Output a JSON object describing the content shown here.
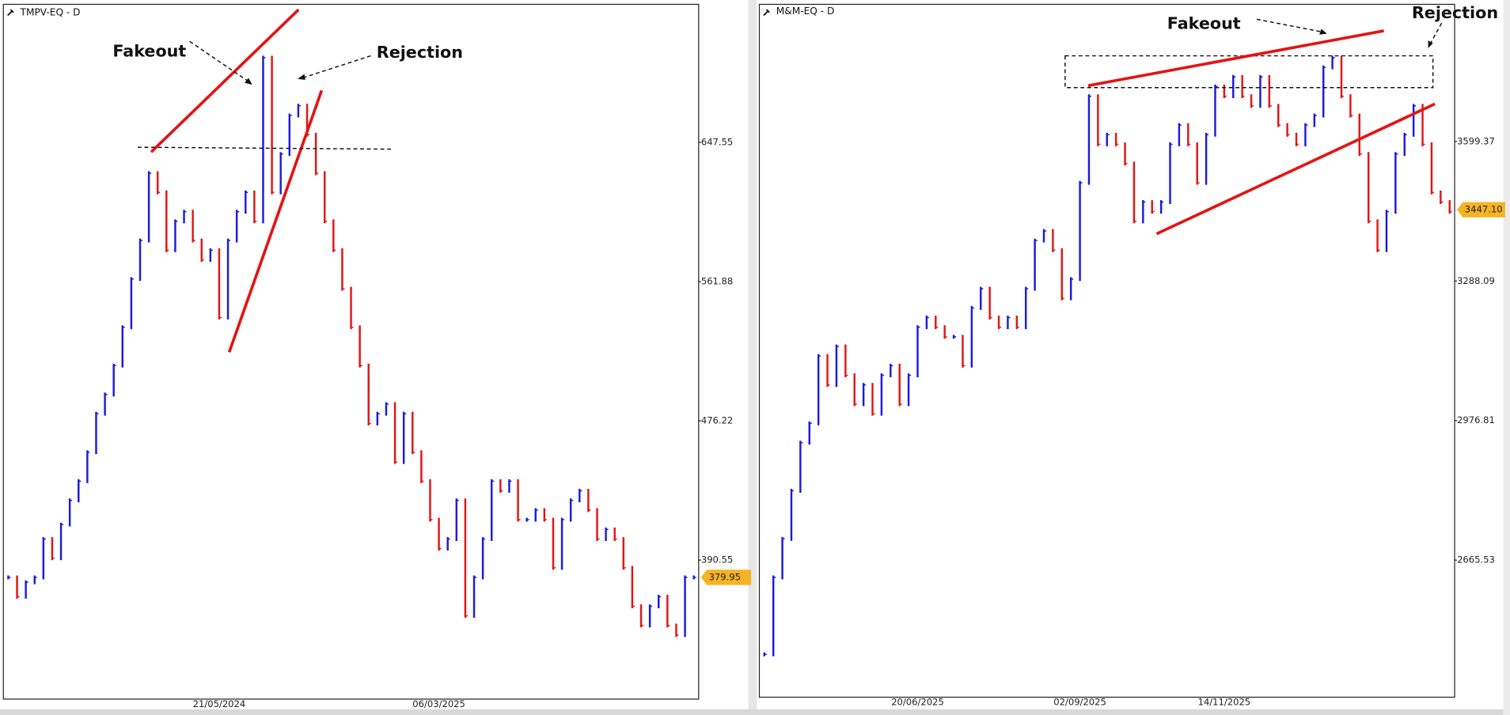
{
  "chart_data": [
    {
      "type": "ohlc",
      "title": "TMPV-EQ - D",
      "up_color": "#1a1ae0",
      "down_color": "#e31414",
      "annotations": [
        "Fakeout",
        "Rejection"
      ],
      "categories": [
        null,
        null,
        null,
        null,
        null,
        null,
        null,
        null,
        null,
        null,
        null,
        null,
        null,
        null,
        null,
        null,
        null,
        null,
        null,
        null,
        null,
        null,
        null,
        null,
        "21/05/2024",
        null,
        null,
        null,
        null,
        null,
        null,
        null,
        null,
        null,
        null,
        null,
        null,
        null,
        null,
        null,
        null,
        null,
        null,
        null,
        null,
        null,
        null,
        null,
        null,
        "06/03/2025",
        null,
        null,
        null,
        null,
        null,
        null,
        null,
        null,
        null,
        null,
        null,
        null,
        null,
        null,
        null,
        null,
        null,
        null,
        null,
        null,
        null,
        null,
        null,
        null,
        null,
        null,
        null,
        null,
        null
      ],
      "values": [
        379.9,
        368.0,
        376.9,
        379.9,
        403.5,
        391.7,
        412.4,
        427.3,
        439.1,
        456.9,
        480.6,
        492.4,
        510.2,
        533.8,
        563.5,
        587.2,
        628.6,
        616.8,
        581.2,
        599.0,
        604.9,
        587.2,
        575.3,
        581.2,
        539.8,
        587.2,
        604.9,
        616.8,
        599.0,
        699.7,
        616.8,
        640.4,
        664.1,
        670.1,
        652.3,
        628.6,
        599.0,
        581.2,
        557.5,
        533.8,
        510.2,
        474.6,
        480.6,
        486.5,
        450.9,
        480.6,
        456.9,
        439.1,
        415.4,
        397.6,
        403.5,
        427.3,
        356.2,
        379.9,
        403.5,
        439.1,
        433.2,
        439.1,
        415.4,
        415.4,
        421.3,
        415.4,
        385.8,
        415.4,
        427.3,
        433.2,
        421.3,
        403.5,
        409.4,
        403.5,
        385.8,
        362.1,
        350.3,
        362.1,
        368.0,
        350.3,
        344.4,
        379.9,
        379.9
      ],
      "ylim": [
        305.3,
        732.8
      ],
      "yticks": [
        390.55,
        476.22,
        561.88,
        647.55
      ],
      "last_price": 379.95
    },
    {
      "type": "ohlc",
      "title": "M&M-EQ - D",
      "up_color": "#1a1ae0",
      "down_color": "#e31414",
      "annotations": [
        "Fakeout",
        "Rejection"
      ],
      "categories": [
        null,
        null,
        null,
        null,
        null,
        null,
        null,
        null,
        null,
        null,
        null,
        null,
        null,
        null,
        null,
        null,
        null,
        "20/06/2025",
        null,
        null,
        null,
        null,
        null,
        null,
        null,
        null,
        null,
        null,
        null,
        null,
        null,
        null,
        null,
        null,
        null,
        "02/09/2025",
        null,
        null,
        null,
        null,
        null,
        null,
        null,
        null,
        null,
        null,
        null,
        null,
        null,
        null,
        null,
        "14/11/2025",
        null,
        null,
        null,
        null,
        null,
        null,
        null,
        null,
        null,
        null,
        null,
        null,
        null,
        null,
        null,
        null,
        null,
        null,
        null,
        null,
        null,
        null,
        null,
        null,
        null
      ],
      "values": [
        2455.2,
        2626.9,
        2712.8,
        2820.1,
        2927.4,
        2970.4,
        3120.7,
        3056.3,
        3142.1,
        3077.7,
        3013.3,
        3056.3,
        2991.9,
        3077.7,
        3099.2,
        3013.3,
        3077.7,
        3185.1,
        3206.5,
        3185.1,
        3163.6,
        3163.6,
        3099.2,
        3228.0,
        3270.9,
        3206.5,
        3185.1,
        3206.5,
        3185.1,
        3270.9,
        3378.3,
        3399.7,
        3356.8,
        3249.5,
        3292.4,
        3507.1,
        3700.3,
        3593.0,
        3614.4,
        3593.0,
        3550.0,
        3421.2,
        3464.2,
        3442.7,
        3464.2,
        3593.0,
        3635.9,
        3593.0,
        3507.1,
        3614.4,
        3721.8,
        3700.3,
        3743.2,
        3700.3,
        3678.8,
        3743.2,
        3678.8,
        3635.9,
        3614.4,
        3593.0,
        3635.9,
        3657.3,
        3764.7,
        3786.2,
        3700.3,
        3657.3,
        3571.5,
        3421.2,
        3356.8,
        3442.7,
        3571.5,
        3614.4,
        3678.8,
        3593.0,
        3485.6,
        3464.2,
        3442.7
      ],
      "ylim": [
        2360.7,
        3906.4
      ],
      "yticks": [
        2665.53,
        2976.81,
        3288.09,
        3599.37
      ],
      "last_price": {
        "value": 3447.1,
        "label": "3447.10"
      }
    }
  ]
}
